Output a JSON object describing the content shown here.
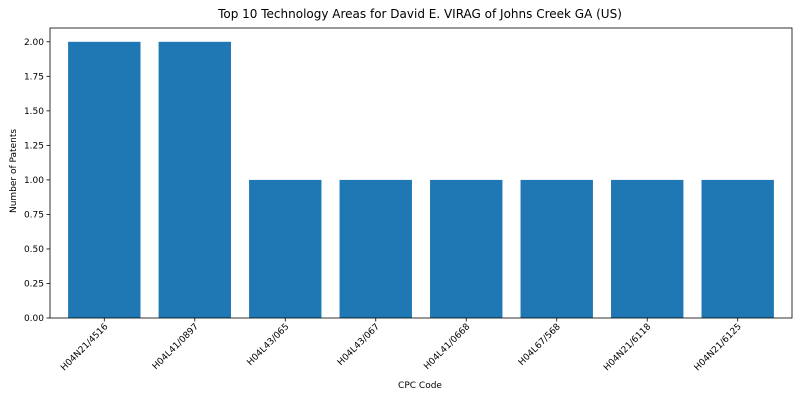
{
  "chart_data": {
    "type": "bar",
    "title": "Top 10 Technology Areas for David E. VIRAG of Johns Creek GA (US)",
    "xlabel": "CPC Code",
    "ylabel": "Number of Patents",
    "categories": [
      "H04N21/4516",
      "H04L41/0897",
      "H04L43/065",
      "H04L43/067",
      "H04L41/0668",
      "H04L67/568",
      "H04N21/6118",
      "H04N21/6125"
    ],
    "values": [
      2,
      2,
      1,
      1,
      1,
      1,
      1,
      1
    ],
    "ylim": [
      0,
      2.1
    ],
    "yticks": [
      "0.00",
      "0.25",
      "0.50",
      "0.75",
      "1.00",
      "1.25",
      "1.50",
      "1.75",
      "2.00"
    ],
    "bar_color": "#1f77b4",
    "grid": false,
    "legend": "none"
  }
}
